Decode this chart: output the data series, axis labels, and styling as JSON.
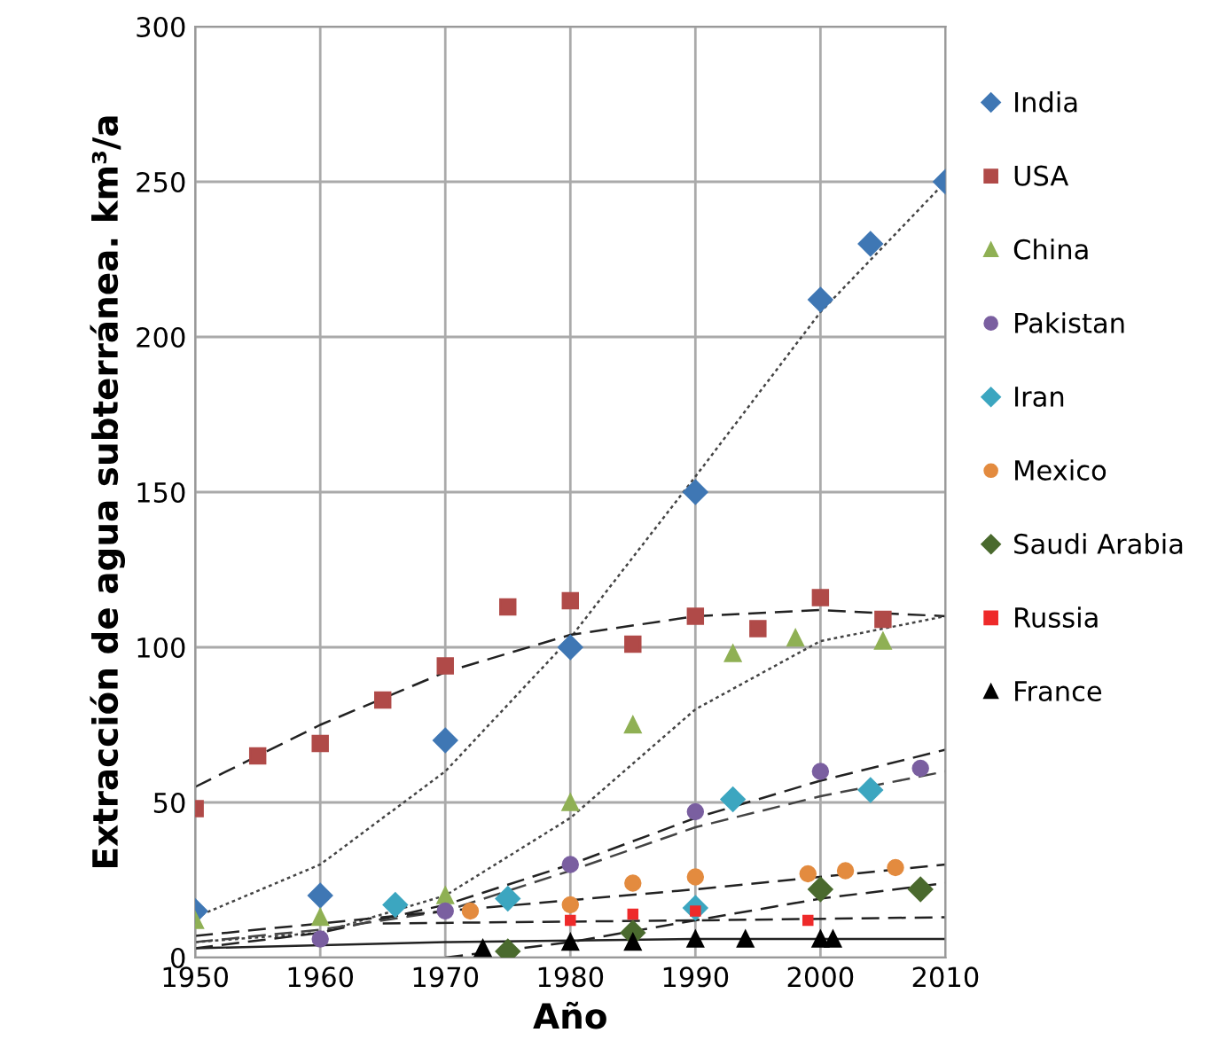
{
  "chart_data": {
    "type": "scatter",
    "xlabel": "Año",
    "ylabel": "Extracción de agua subterránea. km³/a",
    "xlim": [
      1950,
      2010
    ],
    "xticks": [
      1950,
      1960,
      1970,
      1980,
      1990,
      2000,
      2010
    ],
    "ylim": [
      0,
      300
    ],
    "yticks": [
      0,
      50,
      100,
      150,
      200,
      250,
      300
    ],
    "grid": true,
    "legend": "right",
    "series": [
      {
        "name": "India",
        "color": "#3f77b4",
        "marker": "diamond",
        "x": [
          1950,
          1960,
          1970,
          1980,
          1990,
          2000,
          2004,
          2010
        ],
        "values": [
          15,
          20,
          70,
          100,
          150,
          212,
          230,
          250
        ]
      },
      {
        "name": "USA",
        "color": "#b04a48",
        "marker": "square",
        "x": [
          1950,
          1955,
          1960,
          1965,
          1970,
          1975,
          1980,
          1985,
          1990,
          1995,
          2000,
          2005
        ],
        "values": [
          48,
          65,
          69,
          83,
          94,
          113,
          115,
          101,
          110,
          106,
          116,
          109
        ]
      },
      {
        "name": "China",
        "color": "#8fb054",
        "marker": "triangle",
        "x": [
          1950,
          1960,
          1970,
          1980,
          1985,
          1993,
          1998,
          2005
        ],
        "values": [
          12,
          13,
          20,
          50,
          75,
          98,
          103,
          102
        ]
      },
      {
        "name": "Pakistan",
        "color": "#7a5fa0",
        "marker": "circle",
        "x": [
          1960,
          1970,
          1980,
          1990,
          2000,
          2008
        ],
        "values": [
          6,
          15,
          30,
          47,
          60,
          61
        ]
      },
      {
        "name": "Iran",
        "color": "#3ca6c0",
        "marker": "diamond",
        "x": [
          1966,
          1975,
          1990,
          1993,
          2004
        ],
        "values": [
          17,
          19,
          16,
          51,
          54
        ]
      },
      {
        "name": "Mexico",
        "color": "#e38b3f",
        "marker": "circle",
        "x": [
          1972,
          1980,
          1985,
          1990,
          1999,
          2002,
          2006
        ],
        "values": [
          15,
          17,
          24,
          26,
          27,
          28,
          29
        ]
      },
      {
        "name": "Saudi Arabia",
        "color": "#4a6a2e",
        "marker": "diamond",
        "x": [
          1975,
          1985,
          2000,
          2008
        ],
        "values": [
          2,
          8,
          22,
          22
        ]
      },
      {
        "name": "Russia",
        "color": "#ee2a2a",
        "marker": "square",
        "x": [
          1980,
          1985,
          1990,
          1999
        ],
        "values": [
          12,
          14,
          15,
          12
        ]
      },
      {
        "name": "France",
        "color": "#000000",
        "marker": "triangle",
        "x": [
          1973,
          1980,
          1985,
          1990,
          1994,
          2000,
          2001
        ],
        "values": [
          3,
          5,
          5,
          6,
          6,
          6,
          6
        ]
      },
      {
        "type": "line",
        "color": "#444444",
        "line_style": "dotted",
        "x": [
          1950,
          1960,
          1970,
          1980,
          1990,
          2000,
          2010
        ],
        "values": [
          13,
          30,
          60,
          103,
          155,
          208,
          250
        ]
      },
      {
        "type": "line",
        "color": "#222222",
        "line_style": "dashed",
        "x": [
          1950,
          1960,
          1970,
          1980,
          1990,
          2000,
          2010
        ],
        "values": [
          55,
          75,
          92,
          104,
          110,
          112,
          110
        ]
      },
      {
        "type": "line",
        "color": "#444444",
        "line_style": "dotted",
        "x": [
          1950,
          1960,
          1970,
          1980,
          1990,
          2000,
          2010
        ],
        "values": [
          5,
          8,
          20,
          45,
          80,
          102,
          110
        ]
      },
      {
        "type": "line",
        "color": "#222222",
        "line_style": "dashed",
        "x": [
          1950,
          1960,
          1970,
          1980,
          1990,
          2000,
          2010
        ],
        "values": [
          3,
          8,
          17,
          30,
          45,
          57,
          67
        ]
      },
      {
        "type": "line",
        "color": "#444444",
        "line_style": "dashed",
        "x": [
          1950,
          1960,
          1970,
          1980,
          1990,
          2000,
          2010
        ],
        "values": [
          5,
          9,
          15,
          28,
          42,
          52,
          60
        ]
      },
      {
        "type": "line",
        "color": "#222222",
        "line_style": "dashed",
        "x": [
          1950,
          1970,
          1990,
          2010
        ],
        "values": [
          7,
          15,
          22,
          30
        ]
      },
      {
        "type": "line",
        "color": "#222222",
        "line_style": "dashed",
        "x": [
          1970,
          1980,
          1990,
          2000,
          2010
        ],
        "values": [
          0,
          5,
          12,
          19,
          24
        ]
      },
      {
        "type": "line",
        "color": "#222222",
        "line_style": "dashed",
        "x": [
          1965,
          1990,
          2010
        ],
        "values": [
          11,
          12,
          13
        ]
      },
      {
        "type": "line",
        "color": "#222222",
        "line_style": "solid",
        "x": [
          1950,
          1970,
          1990,
          2010
        ],
        "values": [
          3,
          5,
          6,
          6
        ]
      }
    ]
  }
}
